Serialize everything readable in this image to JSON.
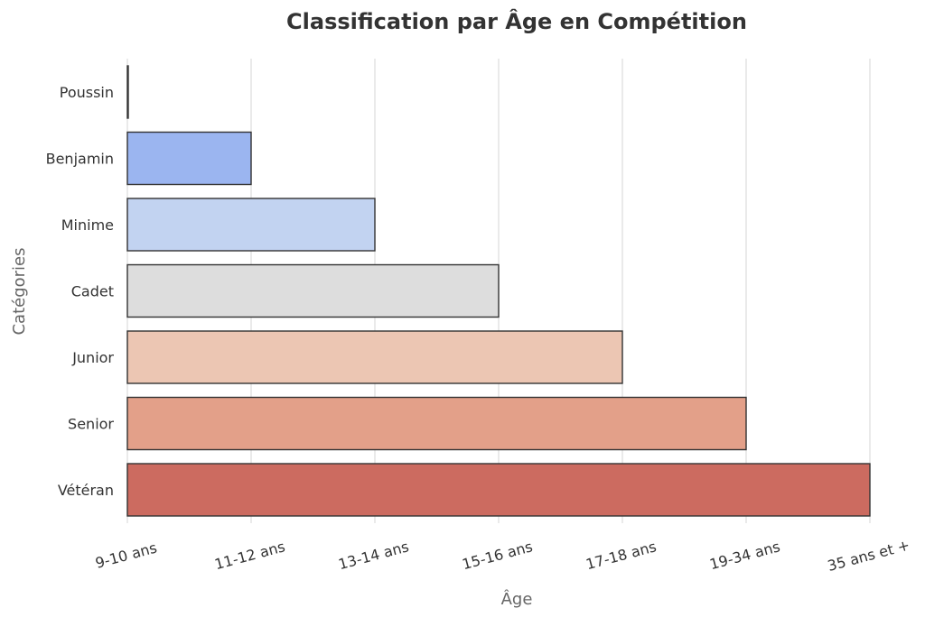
{
  "chart_data": {
    "type": "bar",
    "orientation": "horizontal",
    "title": "Classification par Âge en Compétition",
    "xlabel": "Âge",
    "ylabel": "Catégories",
    "categories": [
      "Poussin",
      "Benjamin",
      "Minime",
      "Cadet",
      "Junior",
      "Senior",
      "Vétéran"
    ],
    "x_tick_labels": [
      "9-10 ans",
      "11-12 ans",
      "13-14 ans",
      "15-16 ans",
      "17-18 ans",
      "19-34 ans",
      "35 ans et +"
    ],
    "values": [
      0,
      1,
      2,
      3,
      4,
      5,
      6
    ],
    "colors": [
      "#6f8ff0",
      "#9bb5f0",
      "#c2d3f1",
      "#dddddd",
      "#ecc6b3",
      "#e3a089",
      "#cc6b60"
    ],
    "xlim": [
      0,
      6
    ],
    "grid": "vertical"
  }
}
